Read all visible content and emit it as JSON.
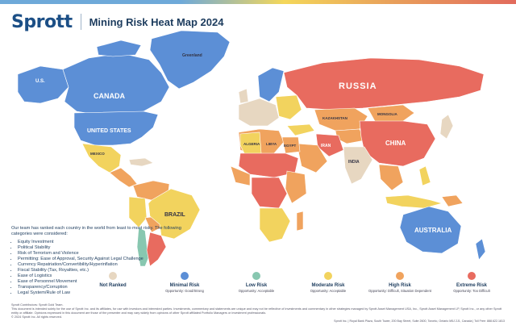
{
  "header": {
    "logo": "Sprott",
    "title": "Mining Risk Heat Map 2024"
  },
  "colors": {
    "not_ranked": "#e7d7c1",
    "minimal": "#5c8fd6",
    "low": "#88c7b0",
    "moderate": "#f2d35e",
    "high": "#f0a35e",
    "extreme": "#e86b5f",
    "ocean": "#ffffff",
    "border": "#ffffff",
    "accent": "#1c4f86"
  },
  "map": {
    "labels": {
      "greenland": "Greenland",
      "us_alaska": "U.S.",
      "canada": "CANADA",
      "united_states": "UNITED STATES",
      "mexico": "MEXICO",
      "brazil": "BRAZIL",
      "russia": "RUSSIA",
      "china": "CHINA",
      "india": "INDIA",
      "iran": "IRAN",
      "algeria": "ALGERIA",
      "libya": "LIBYA",
      "egypt": "EGYPT",
      "mongolia": "MONGOLIA",
      "kazakhstan": "KAZAKHSTAN",
      "australia": "AUSTRALIA"
    }
  },
  "intro": {
    "lead": "Our team has ranked each country in the world from least to most risky. The following categories were considered:",
    "items": [
      "Equity Investment",
      "Political Stability",
      "Risk of Terrorism and Violence",
      "Permitting: Ease of Approval, Security Against Legal Challenge",
      "Currency Repatriation/Convertibility/Hyperinflation",
      "Fiscal Stability (Tax, Royalties, etc.)",
      "Ease of Logistics",
      "Ease of Personnel Movement",
      "Transparency/Corruption",
      "Legal System/Rule of Law"
    ]
  },
  "legend": [
    {
      "label": "Not Ranked",
      "sub": ""
    },
    {
      "label": "Minimal Risk",
      "sub": "Opportunity: Good/Strong"
    },
    {
      "label": "Low Risk",
      "sub": "Opportunity: Acceptable"
    },
    {
      "label": "Moderate Risk",
      "sub": "Opportunity: Acceptable"
    },
    {
      "label": "High Risk",
      "sub": "Opportunity: Difficult, Situation Dependent"
    },
    {
      "label": "Extreme Risk",
      "sub": "Opportunity: Too Difficult"
    }
  ],
  "footer": {
    "contributors": "Sprott Contributors: Sprott Gold Team.",
    "disclaimer": "This document is intended solely for the use of Sprott Inc. and its affiliates, for use with investors and interested parties. Investments, commentary and statements are unique and may not be reflective of investments and commentary in other strategies managed by Sprott Asset Management USA, Inc., Sprott Asset Management LP, Sprott Inc., or any other Sprott entity or affiliate. Opinions expressed in this document are those of the presenter and may vary widely from opinions of other Sprott affiliated Portfolio Managers or investment professionals.",
    "copyright": "© 2024 Sprott Inc. All rights reserved.",
    "address": "Sprott Inc. | Royal Bank Plaza, South Tower, 200 Bay Street, Suite 2600, Toronto, Ontario M5J 2J1, Canada | Toll Free: 888.622.1813"
  }
}
